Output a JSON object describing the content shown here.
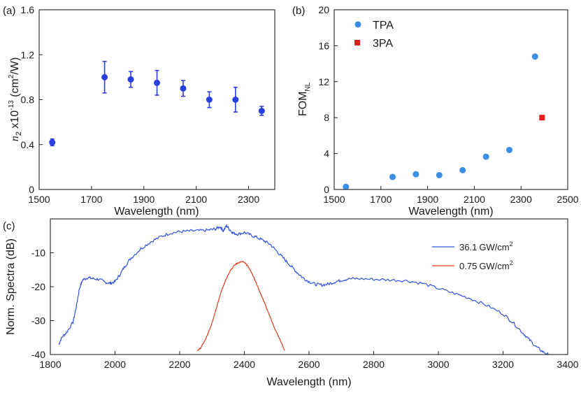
{
  "chart_data": [
    {
      "panel": "(a)",
      "type": "scatter",
      "xlabel": "Wavelength (nm)",
      "ylabel": {
        "symbol": "n",
        "sub": "2",
        "mid": " x10",
        "exp": "-13",
        "unit_open": " (cm",
        "unit_exp": "2",
        "unit_close": "/W)"
      },
      "xlim": [
        1500,
        2400
      ],
      "ylim": [
        0,
        1.6
      ],
      "xticks": [
        1500,
        1700,
        1900,
        2100,
        2300
      ],
      "yticks": [
        0,
        0.4,
        0.8,
        1.2,
        1.6
      ],
      "ytick_labels": [
        "0",
        "0.4",
        "0.8",
        "1.2",
        "1.6"
      ],
      "color": "#2a3fe0",
      "points": [
        {
          "x": 1550,
          "y": 0.42,
          "err": 0.03
        },
        {
          "x": 1750,
          "y": 1.0,
          "err": 0.14
        },
        {
          "x": 1850,
          "y": 0.98,
          "err": 0.07
        },
        {
          "x": 1950,
          "y": 0.95,
          "err": 0.11
        },
        {
          "x": 2050,
          "y": 0.9,
          "err": 0.07
        },
        {
          "x": 2150,
          "y": 0.8,
          "err": 0.07
        },
        {
          "x": 2250,
          "y": 0.8,
          "err": 0.11
        },
        {
          "x": 2350,
          "y": 0.7,
          "err": 0.04
        }
      ]
    },
    {
      "panel": "(b)",
      "type": "scatter",
      "xlabel": "Wavelength (nm)",
      "ylabel": {
        "main": "FOM",
        "sub": "NL"
      },
      "xlim": [
        1500,
        2500
      ],
      "ylim": [
        0,
        20
      ],
      "xticks": [
        1500,
        1700,
        1900,
        2100,
        2300,
        2500
      ],
      "yticks": [
        0,
        4,
        8,
        12,
        16,
        20
      ],
      "series": [
        {
          "name": "TPA",
          "marker": "circle",
          "color": "#3a8ee8",
          "x": [
            1550,
            1750,
            1850,
            1950,
            2050,
            2150,
            2250,
            2360
          ],
          "y": [
            0.3,
            1.4,
            1.7,
            1.6,
            2.15,
            3.65,
            4.4,
            14.8
          ]
        },
        {
          "name": "3PA",
          "marker": "square",
          "color": "#e81c1c",
          "x": [
            2390
          ],
          "y": [
            8.0
          ]
        }
      ],
      "legend_position": "top-left"
    },
    {
      "panel": "(c)",
      "type": "line",
      "xlabel": "Wavelength (nm)",
      "ylabel": "Norm. Spectra (dB)",
      "xlim": [
        1800,
        3400
      ],
      "ylim": [
        -40,
        0
      ],
      "xticks": [
        1800,
        2000,
        2200,
        2400,
        2600,
        2800,
        3000,
        3200,
        3400
      ],
      "yticks": [
        -40,
        -30,
        -20,
        -10
      ],
      "legend_position": "top-right",
      "series": [
        {
          "name": "36.1",
          "unit": "GW/cm",
          "unit_exp": "2",
          "color": "#2f52e0",
          "x": [
            1826,
            1835,
            1850,
            1870,
            1880,
            1890,
            1900,
            1915,
            1930,
            1950,
            1970,
            1985,
            2000,
            2015,
            2030,
            2050,
            2080,
            2110,
            2140,
            2170,
            2200,
            2230,
            2260,
            2290,
            2310,
            2325,
            2335,
            2345,
            2355,
            2365,
            2380,
            2400,
            2420,
            2440,
            2460,
            2480,
            2500,
            2520,
            2540,
            2560,
            2580,
            2600,
            2620,
            2640,
            2660,
            2680,
            2700,
            2720,
            2750,
            2800,
            2850,
            2900,
            2950,
            3000,
            3050,
            3100,
            3150,
            3200,
            3230,
            3260,
            3280,
            3300,
            3320,
            3340
          ],
          "y": [
            -37.0,
            -35.0,
            -33.5,
            -30.5,
            -26.0,
            -20.5,
            -18.0,
            -17.3,
            -17.6,
            -17.8,
            -18.7,
            -19.0,
            -18.5,
            -16.5,
            -14.0,
            -11.5,
            -8.8,
            -6.8,
            -5.3,
            -4.2,
            -3.8,
            -3.6,
            -3.5,
            -3.3,
            -3.0,
            -2.3,
            -3.5,
            -2.0,
            -3.2,
            -4.2,
            -4.5,
            -4.0,
            -4.8,
            -5.5,
            -6.4,
            -7.5,
            -9.5,
            -11.5,
            -13.5,
            -15.5,
            -17.3,
            -18.5,
            -19.3,
            -19.5,
            -19.2,
            -18.6,
            -18.1,
            -17.7,
            -17.6,
            -17.8,
            -18.0,
            -18.2,
            -19.0,
            -20.5,
            -22.0,
            -23.5,
            -25.5,
            -28.0,
            -30.5,
            -33.5,
            -35.5,
            -37.5,
            -39.0,
            -40.0
          ]
        },
        {
          "name": "0.75",
          "unit": "GW/cm",
          "unit_exp": "2",
          "color": "#e03a1a",
          "x": [
            2255,
            2265,
            2280,
            2295,
            2310,
            2325,
            2340,
            2355,
            2370,
            2380,
            2390,
            2400,
            2410,
            2420,
            2435,
            2450,
            2465,
            2480,
            2495,
            2510,
            2525
          ],
          "y": [
            -38.8,
            -38.0,
            -35.5,
            -32.0,
            -27.5,
            -22.5,
            -18.5,
            -15.5,
            -13.6,
            -13.0,
            -12.6,
            -12.8,
            -13.8,
            -15.5,
            -18.5,
            -22.0,
            -25.5,
            -29.0,
            -32.5,
            -35.5,
            -38.8
          ]
        }
      ]
    }
  ]
}
